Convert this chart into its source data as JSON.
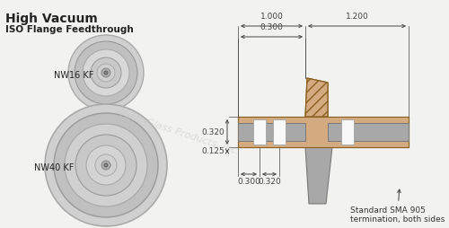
{
  "title_line1": "High Vacuum",
  "title_line2": "ISO Flange Feedthrough",
  "watermark": "Accu-Glass Products, Inc.",
  "label_nw16": "NW16 KF",
  "label_nw40": "NW40 KF",
  "sma_note": "Standard SMA 905\ntermination, both sides",
  "dims": {
    "d_0300_top": "0.300",
    "d_1000": "1.000",
    "d_1200": "1.200",
    "d_0125": "0.125",
    "d_0320_mid": "0.320",
    "d_0300_bot": "0.300",
    "d_0320_bot": "0.320"
  },
  "bg_color": "#f2f2f0",
  "flange_fill": "#d4aa80",
  "flange_edge": "#8a6020",
  "metal_light": "#c8c8c8",
  "metal_mid": "#a8a8a8",
  "metal_dark": "#787878",
  "white_ins": "#f8f8f8",
  "dim_color": "#444444",
  "text_color": "#222222",
  "wm_color": "#cccccc"
}
